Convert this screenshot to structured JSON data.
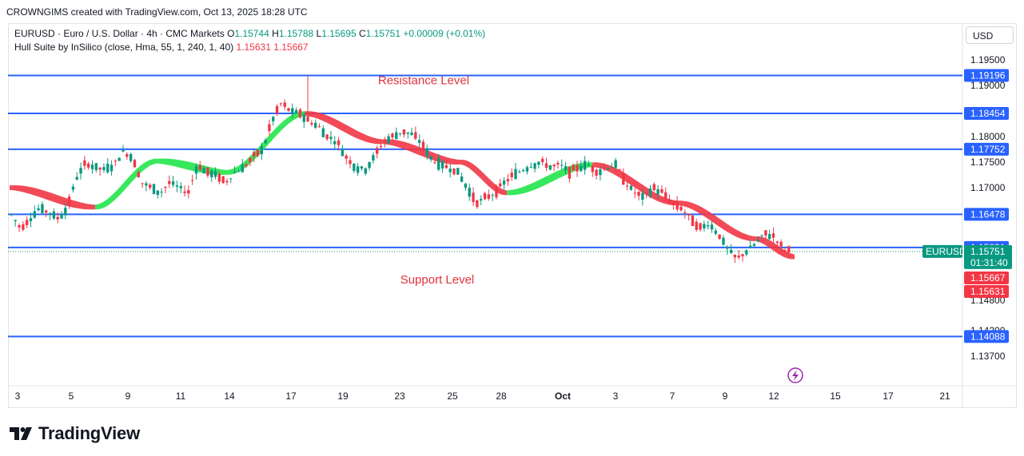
{
  "header": {
    "created_by": "CROWNGIMS created with TradingView.com, Oct 13, 2025 18:28 UTC"
  },
  "legend": {
    "symbol_line": "EURUSD · Euro / U.S. Dollar · 4h · CMC Markets",
    "o_label": "O",
    "o_value": "1.15744",
    "h_label": "H",
    "h_value": "1.15788",
    "l_label": "L",
    "l_value": "1.15695",
    "c_label": "C",
    "c_value": "1.15751",
    "change": "+0.00009 (+0.01%)",
    "indicator": "Hull Suite by InSilico (close, Hma, 55, 1, 240, 1, 40)",
    "ind_value1": "1.15631",
    "ind_value2": "1.15667"
  },
  "currency_button": "USD",
  "brand": {
    "name": "TradingView"
  },
  "colors": {
    "up": "#089981",
    "down": "#f23645",
    "level_line": "#2962ff",
    "hull_up": "#22e64a",
    "hull_down": "#f23645",
    "annotation": "#e0323e"
  },
  "chart_data": {
    "type": "candlestick",
    "ylim": [
      1.1335,
      1.198
    ],
    "y_ticks": [
      {
        "value": 1.195,
        "label": "1.19500"
      },
      {
        "value": 1.19,
        "label": "1.19000"
      },
      {
        "value": 1.18,
        "label": "1.18000"
      },
      {
        "value": 1.175,
        "label": "1.17500"
      },
      {
        "value": 1.17,
        "label": "1.17000"
      },
      {
        "value": 1.148,
        "label": "1.14800"
      },
      {
        "value": 1.142,
        "label": "1.14200"
      },
      {
        "value": 1.137,
        "label": "1.13700"
      }
    ],
    "x_ticks": [
      "3",
      "5",
      "9",
      "11",
      "14",
      "17",
      "19",
      "23",
      "25",
      "28",
      "Oct",
      "3",
      "7",
      "9",
      "12",
      "15",
      "17",
      "21"
    ],
    "horizontal_levels": [
      {
        "value": 1.19196,
        "label": "1.19196"
      },
      {
        "value": 1.18454,
        "label": "1.18454"
      },
      {
        "value": 1.17752,
        "label": "1.17752"
      },
      {
        "value": 1.16478,
        "label": "1.16478"
      },
      {
        "value": 1.15831,
        "label": "1.15831"
      },
      {
        "value": 1.14088,
        "label": "1.14088"
      }
    ],
    "annotations": [
      {
        "text": "Resistance Level",
        "value": 1.191
      },
      {
        "text": "Support Level",
        "value": 1.152
      }
    ],
    "current_price": {
      "symbol": "EURUSD",
      "value": 1.15751,
      "label": "1.15751",
      "countdown": "01:31:40"
    },
    "hull_labels": [
      {
        "value": 1.15667,
        "label": "1.15667"
      },
      {
        "value": 1.15631,
        "label": "1.15631"
      }
    ],
    "close_path": [
      1.1647,
      1.162,
      1.164,
      1.166,
      1.1652,
      1.164,
      1.166,
      1.172,
      1.1748,
      1.174,
      1.1735,
      1.1745,
      1.177,
      1.176,
      1.171,
      1.17,
      1.169,
      1.171,
      1.17,
      1.169,
      1.1745,
      1.173,
      1.1725,
      1.171,
      1.173,
      1.174,
      1.176,
      1.1775,
      1.183,
      1.1865,
      1.185,
      1.1845,
      1.183,
      1.182,
      1.18,
      1.179,
      1.176,
      1.174,
      1.1735,
      1.176,
      1.179,
      1.18,
      1.181,
      1.1805,
      1.179,
      1.176,
      1.1745,
      1.174,
      1.173,
      1.17,
      1.167,
      1.168,
      1.169,
      1.171,
      1.1725,
      1.1735,
      1.1745,
      1.175,
      1.174,
      1.1745,
      1.173,
      1.174,
      1.1745,
      1.173,
      1.174,
      1.1745,
      1.171,
      1.169,
      1.168,
      1.17,
      1.169,
      1.167,
      1.166,
      1.164,
      1.162,
      1.163,
      1.161,
      1.158,
      1.156,
      1.1575,
      1.159,
      1.161,
      1.1605,
      1.158,
      1.1575
    ],
    "hull_band": [
      {
        "x_index": 0,
        "value": 1.17,
        "trend": "down"
      },
      {
        "x_index": 11,
        "value": 1.1662,
        "trend": "up"
      },
      {
        "x_index": 19,
        "value": 1.1752,
        "trend": "up"
      },
      {
        "x_index": 28,
        "value": 1.173,
        "trend": "up"
      },
      {
        "x_index": 38,
        "value": 1.1845,
        "trend": "down"
      },
      {
        "x_index": 48,
        "value": 1.179,
        "trend": "down"
      },
      {
        "x_index": 58,
        "value": 1.175,
        "trend": "down"
      },
      {
        "x_index": 64,
        "value": 1.169,
        "trend": "up"
      },
      {
        "x_index": 75,
        "value": 1.1745,
        "trend": "down"
      },
      {
        "x_index": 86,
        "value": 1.167,
        "trend": "down"
      },
      {
        "x_index": 96,
        "value": 1.16,
        "trend": "down"
      },
      {
        "x_index": 101,
        "value": 1.1565,
        "trend": "down"
      }
    ]
  }
}
